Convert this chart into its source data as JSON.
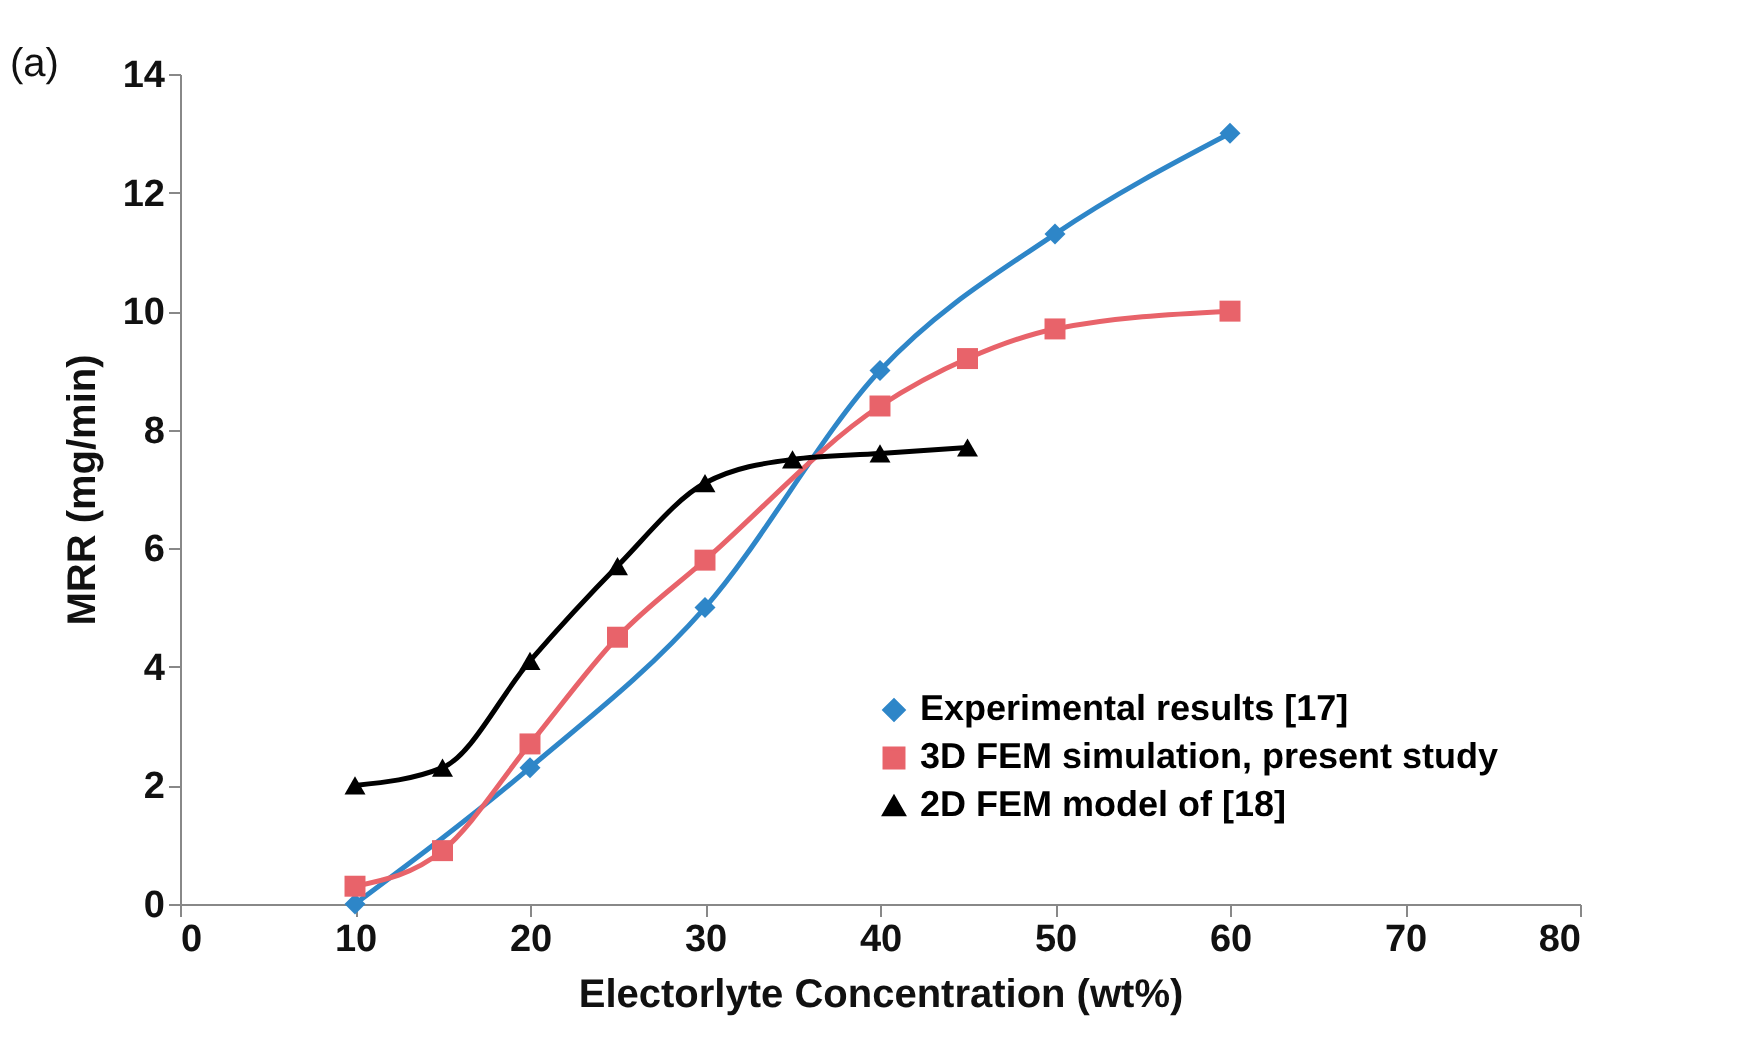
{
  "chart_data": {
    "type": "line",
    "xlabel": "Electorlyte Concentration (wt%)",
    "ylabel": "MRR (mg/min)",
    "annotations": [
      "(a)"
    ],
    "xlim": [
      0,
      80
    ],
    "xticks": [
      0,
      10,
      20,
      30,
      40,
      50,
      60,
      70,
      80
    ],
    "ylim": [
      0,
      14
    ],
    "yticks": [
      0,
      2,
      4,
      6,
      8,
      10,
      12,
      14
    ],
    "grid": false,
    "legend": "bottom right",
    "series": [
      {
        "name": "Experimental results [17]",
        "color": "#2e86c8",
        "marker": "diamond",
        "x": [
          10,
          20,
          30,
          40,
          50,
          60
        ],
        "values": [
          0,
          2.3,
          5.0,
          9.0,
          11.3,
          13.0
        ]
      },
      {
        "name": "3D FEM simulation, present study",
        "color": "#e8636a",
        "marker": "square",
        "x": [
          10,
          15,
          20,
          25,
          30,
          40,
          45,
          50,
          60
        ],
        "values": [
          0.3,
          0.9,
          2.7,
          4.5,
          5.8,
          8.4,
          9.2,
          9.7,
          10.0
        ]
      },
      {
        "name": "2D FEM model of [18]",
        "color": "#000000",
        "marker": "triangle",
        "x": [
          10,
          15,
          20,
          25,
          30,
          35,
          40,
          45
        ],
        "values": [
          2.0,
          2.3,
          4.1,
          5.7,
          7.1,
          7.5,
          7.6,
          7.7
        ]
      }
    ]
  }
}
